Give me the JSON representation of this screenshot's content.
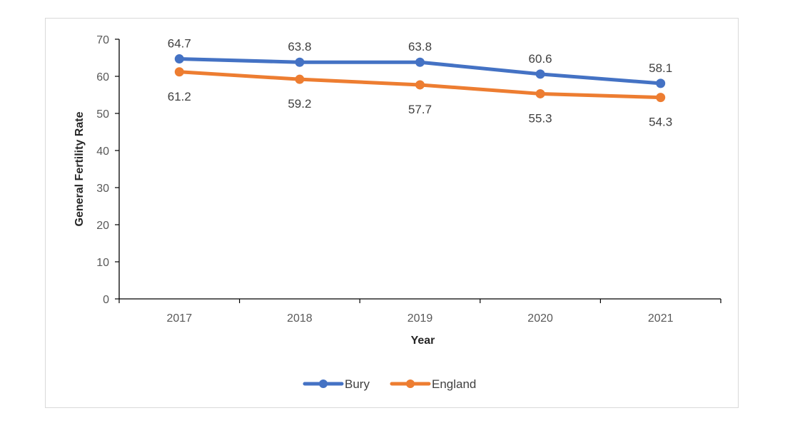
{
  "chart_data": {
    "type": "line",
    "title": "",
    "categories": [
      "2017",
      "2018",
      "2019",
      "2020",
      "2021"
    ],
    "series": [
      {
        "name": "Bury",
        "values": [
          64.7,
          63.8,
          63.8,
          60.6,
          58.1
        ],
        "color": "#4472c4",
        "label_position": "above"
      },
      {
        "name": "England",
        "values": [
          61.2,
          59.2,
          57.7,
          55.3,
          54.3
        ],
        "color": "#ed7d31",
        "label_position": "below"
      }
    ],
    "xlabel": "Year",
    "ylabel": "General Fertility Rate",
    "ylim": [
      0,
      70
    ],
    "yticks": [
      0,
      10,
      20,
      30,
      40,
      50,
      60,
      70
    ],
    "grid": false,
    "legend_position": "bottom"
  }
}
